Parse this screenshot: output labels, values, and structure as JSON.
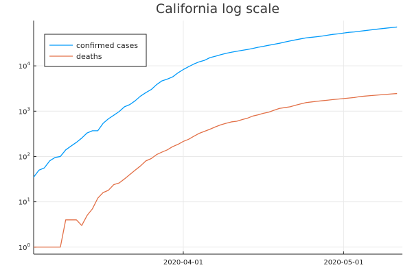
{
  "chart_data": {
    "type": "line",
    "title": "California log scale",
    "xlabel": "",
    "ylabel": "",
    "y_scale": "log10",
    "xlim": [
      "2020-03-04",
      "2020-05-12"
    ],
    "ylim": [
      0.7,
      100000
    ],
    "x_ticks": [
      {
        "date": "2020-04-01",
        "label": "2020-04-01"
      },
      {
        "date": "2020-05-01",
        "label": "2020-05-01"
      }
    ],
    "y_ticks": [
      {
        "value": 1,
        "base": "10",
        "exp": "0"
      },
      {
        "value": 10,
        "base": "10",
        "exp": "1"
      },
      {
        "value": 100,
        "base": "10",
        "exp": "2"
      },
      {
        "value": 1000,
        "base": "10",
        "exp": "3"
      },
      {
        "value": 10000,
        "base": "10",
        "exp": "4"
      }
    ],
    "grid": true,
    "legend": {
      "position": "top-left"
    },
    "x": [
      "2020-03-04",
      "2020-03-05",
      "2020-03-06",
      "2020-03-07",
      "2020-03-08",
      "2020-03-09",
      "2020-03-10",
      "2020-03-11",
      "2020-03-12",
      "2020-03-13",
      "2020-03-14",
      "2020-03-15",
      "2020-03-16",
      "2020-03-17",
      "2020-03-18",
      "2020-03-19",
      "2020-03-20",
      "2020-03-21",
      "2020-03-22",
      "2020-03-23",
      "2020-03-24",
      "2020-03-25",
      "2020-03-26",
      "2020-03-27",
      "2020-03-28",
      "2020-03-29",
      "2020-03-30",
      "2020-03-31",
      "2020-04-01",
      "2020-04-02",
      "2020-04-03",
      "2020-04-04",
      "2020-04-05",
      "2020-04-06",
      "2020-04-07",
      "2020-04-08",
      "2020-04-09",
      "2020-04-10",
      "2020-04-11",
      "2020-04-12",
      "2020-04-13",
      "2020-04-14",
      "2020-04-15",
      "2020-04-16",
      "2020-04-17",
      "2020-04-18",
      "2020-04-19",
      "2020-04-20",
      "2020-04-21",
      "2020-04-22",
      "2020-04-23",
      "2020-04-24",
      "2020-04-25",
      "2020-04-26",
      "2020-04-27",
      "2020-04-28",
      "2020-04-29",
      "2020-04-30",
      "2020-05-01",
      "2020-05-02",
      "2020-05-03",
      "2020-05-04",
      "2020-05-05",
      "2020-05-06",
      "2020-05-07",
      "2020-05-08",
      "2020-05-09",
      "2020-05-10",
      "2020-05-11"
    ],
    "series": [
      {
        "name": "confirmed cases",
        "color": "#009AFA",
        "values": [
          35,
          50,
          56,
          80,
          95,
          100,
          140,
          170,
          205,
          255,
          330,
          370,
          370,
          540,
          680,
          815,
          980,
          1250,
          1400,
          1700,
          2150,
          2570,
          3000,
          3850,
          4660,
          5100,
          5700,
          7000,
          8300,
          9600,
          11000,
          12300,
          13300,
          15200,
          16300,
          17600,
          18900,
          20000,
          21000,
          22000,
          23000,
          24200,
          25700,
          27000,
          28500,
          30000,
          31500,
          33500,
          35500,
          37500,
          39500,
          41500,
          42700,
          44000,
          45500,
          47500,
          49500,
          51000,
          53000,
          55000,
          56000,
          58000,
          60000,
          62000,
          64000,
          66000,
          68000,
          70000,
          72000
        ]
      },
      {
        "name": "deaths",
        "color": "#E26F46",
        "values": [
          1,
          1,
          1,
          1,
          1,
          1,
          4,
          4,
          4,
          3,
          5,
          7,
          12,
          16,
          18,
          24,
          26,
          32,
          40,
          50,
          62,
          80,
          90,
          110,
          125,
          140,
          165,
          185,
          215,
          240,
          280,
          325,
          360,
          400,
          450,
          500,
          540,
          580,
          600,
          650,
          700,
          780,
          830,
          900,
          950,
          1050,
          1150,
          1200,
          1250,
          1350,
          1450,
          1550,
          1600,
          1650,
          1700,
          1750,
          1800,
          1850,
          1900,
          1950,
          2000,
          2100,
          2150,
          2200,
          2250,
          2300,
          2350,
          2400,
          2450
        ]
      }
    ]
  }
}
